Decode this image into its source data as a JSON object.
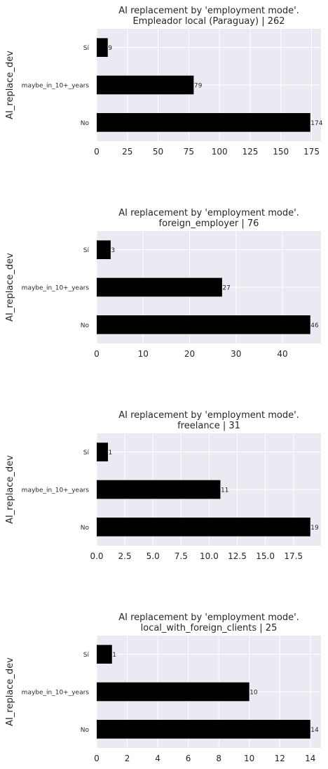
{
  "chart_data": [
    {
      "type": "bar",
      "orientation": "horizontal",
      "title_line1": "AI replacement by 'employment mode'.",
      "title_line2": "Empleador local (Paraguay) | 262",
      "ylabel": "AI_replace_dev",
      "xlabel": "",
      "categories": [
        "Sí",
        "maybe_in_10+_years",
        "No"
      ],
      "values": [
        9,
        79,
        174
      ],
      "value_labels": [
        "9",
        "79",
        "174"
      ],
      "xlim": [
        0,
        182.7
      ],
      "xticks": [
        0,
        25,
        50,
        75,
        100,
        125,
        150,
        175
      ],
      "xtick_labels": [
        "0",
        "25",
        "50",
        "75",
        "100",
        "125",
        "150",
        "175"
      ],
      "grid": true,
      "bar_color": "#000000",
      "background_color": "#eaeaf2"
    },
    {
      "type": "bar",
      "orientation": "horizontal",
      "title_line1": "AI replacement by 'employment mode'.",
      "title_line2": "foreign_employer | 76",
      "ylabel": "AI_replace_dev",
      "xlabel": "",
      "categories": [
        "Sí",
        "maybe_in_10+_years",
        "No"
      ],
      "values": [
        3,
        27,
        46
      ],
      "value_labels": [
        "3",
        "27",
        "46"
      ],
      "xlim": [
        0,
        48.3
      ],
      "xticks": [
        0,
        10,
        20,
        30,
        40
      ],
      "xtick_labels": [
        "0",
        "10",
        "20",
        "30",
        "40"
      ],
      "grid": true,
      "bar_color": "#000000",
      "background_color": "#eaeaf2"
    },
    {
      "type": "bar",
      "orientation": "horizontal",
      "title_line1": "AI replacement by 'employment mode'.",
      "title_line2": "freelance | 31",
      "ylabel": "AI_replace_dev",
      "xlabel": "",
      "categories": [
        "Sí",
        "maybe_in_10+_years",
        "No"
      ],
      "values": [
        1,
        11,
        19
      ],
      "value_labels": [
        "1",
        "11",
        "19"
      ],
      "xlim": [
        0,
        19.95
      ],
      "xticks": [
        0,
        2.5,
        5,
        7.5,
        10,
        12.5,
        15,
        17.5
      ],
      "xtick_labels": [
        "0.0",
        "2.5",
        "5.0",
        "7.5",
        "10.0",
        "12.5",
        "15.0",
        "17.5"
      ],
      "grid": true,
      "bar_color": "#000000",
      "background_color": "#eaeaf2"
    },
    {
      "type": "bar",
      "orientation": "horizontal",
      "title_line1": "AI replacement by 'employment mode'.",
      "title_line2": "local_with_foreign_clients | 25",
      "ylabel": "AI_replace_dev",
      "xlabel": "",
      "categories": [
        "Sí",
        "maybe_in_10+_years",
        "No"
      ],
      "values": [
        1,
        10,
        14
      ],
      "value_labels": [
        "1",
        "10",
        "14"
      ],
      "xlim": [
        0,
        14.7
      ],
      "xticks": [
        0,
        2,
        4,
        6,
        8,
        10,
        12,
        14
      ],
      "xtick_labels": [
        "0",
        "2",
        "4",
        "6",
        "8",
        "10",
        "12",
        "14"
      ],
      "grid": true,
      "bar_color": "#000000",
      "background_color": "#eaeaf2"
    }
  ]
}
